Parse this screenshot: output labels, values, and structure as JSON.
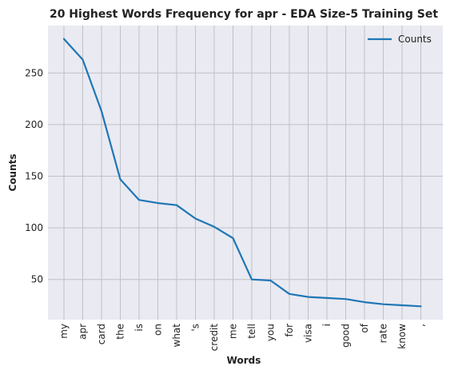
{
  "chart_data": {
    "type": "line",
    "title": "20 Highest Words Frequency for apr - EDA Size-5 Training Set",
    "xlabel": "Words",
    "ylabel": "Counts",
    "categories": [
      "my",
      "apr",
      "card",
      "the",
      "is",
      "on",
      "what",
      "'s",
      "credit",
      "me",
      "tell",
      "you",
      "for",
      "visa",
      "i",
      "good",
      "of",
      "rate",
      "know",
      ","
    ],
    "series": [
      {
        "name": "Counts",
        "values": [
          283,
          263,
          213,
          147,
          127,
          124,
          122,
          109,
          101,
          90,
          50,
          49,
          36,
          33,
          32,
          31,
          28,
          26,
          25,
          24
        ]
      }
    ],
    "yticks": [
      50,
      100,
      150,
      200,
      250
    ],
    "ylim": [
      11.05,
      295.95
    ],
    "grid": true,
    "legend": "top-right",
    "colors": {
      "line": "#1f77b4",
      "background": "#eaeaf2",
      "grid": "#c0c0c6"
    }
  }
}
